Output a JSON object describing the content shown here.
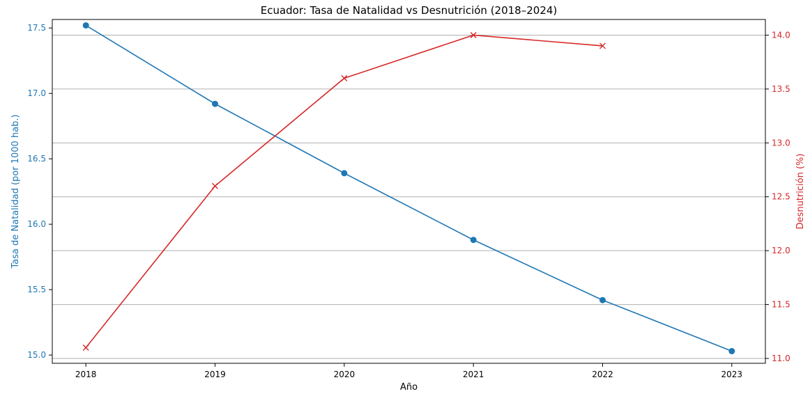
{
  "chart_data": {
    "type": "line",
    "title": "Ecuador: Tasa de Natalidad vs Desnutrición (2018–2024)",
    "xlabel": "Año",
    "x": [
      2018,
      2019,
      2020,
      2021,
      2022,
      2023
    ],
    "x_ticks": [
      "2018",
      "2019",
      "2020",
      "2021",
      "2022",
      "2023"
    ],
    "xlim": [
      2017.74,
      2023.26
    ],
    "grid": "horizontal lines (right axis ticks)",
    "axes": {
      "left": {
        "label": "Tasa de Natalidad (por 1000 hab.)",
        "color": "#1f77b4",
        "ylim": [
          14.937,
          17.565
        ],
        "ticks": [
          "15.0",
          "15.5",
          "16.0",
          "16.5",
          "17.0",
          "17.5"
        ]
      },
      "right": {
        "label": "Desnutrición (%)",
        "color": "#d62728",
        "ylim": [
          10.955,
          14.145
        ],
        "ticks": [
          "11.0",
          "11.5",
          "12.0",
          "12.5",
          "13.0",
          "13.5",
          "14.0"
        ]
      }
    },
    "series": [
      {
        "axis": "left",
        "color": "#1f77b4",
        "marker": "circle",
        "x": [
          2018,
          2019,
          2020,
          2021,
          2022,
          2023
        ],
        "values": [
          17.52,
          16.92,
          16.39,
          15.88,
          15.42,
          15.03
        ]
      },
      {
        "axis": "right",
        "color": "#d62728",
        "marker": "x",
        "x": [
          2018,
          2019,
          2020,
          2021,
          2022
        ],
        "values": [
          11.1,
          12.6,
          13.6,
          14.0,
          13.9
        ]
      }
    ]
  }
}
